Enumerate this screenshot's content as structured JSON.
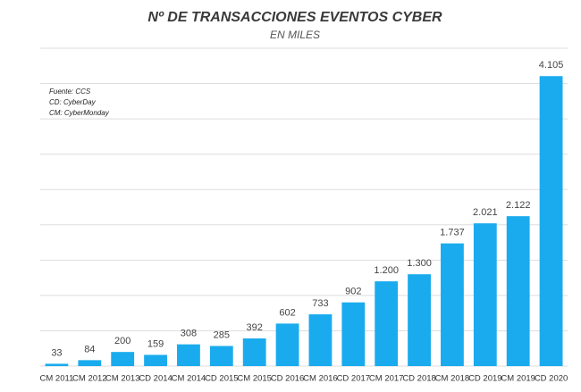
{
  "chart_data": {
    "type": "bar",
    "title": "Nº DE TRANSACCIONES EVENTOS CYBER",
    "subtitle": "EN MILES",
    "notes": [
      "Fuente: CCS",
      "CD: CyberDay",
      "CM: CyberMonday"
    ],
    "categories": [
      "CM 2011",
      "CM 2012",
      "CM 2013",
      "CD 2014",
      "CM 2014",
      "CD 2015",
      "CM 2015",
      "CD 2016",
      "CM 2016",
      "CD 2017",
      "CM 2017",
      "CD 2018",
      "CM 2018",
      "CD 2019",
      "CM 2019",
      "CD 2020"
    ],
    "values": [
      33,
      84,
      200,
      159,
      308,
      285,
      392,
      602,
      733,
      902,
      1200,
      1300,
      1737,
      2021,
      2122,
      4105
    ],
    "value_labels": [
      "33",
      "84",
      "200",
      "159",
      "308",
      "285",
      "392",
      "602",
      "733",
      "902",
      "1.200",
      "1.300",
      "1.737",
      "2.021",
      "2.122",
      "4.105"
    ],
    "color": "#1aabee",
    "ylim": [
      0,
      4500
    ],
    "yticks": [
      0,
      500,
      1000,
      1500,
      2000,
      2500,
      3000,
      3500,
      4000,
      4500
    ],
    "grid": true
  }
}
